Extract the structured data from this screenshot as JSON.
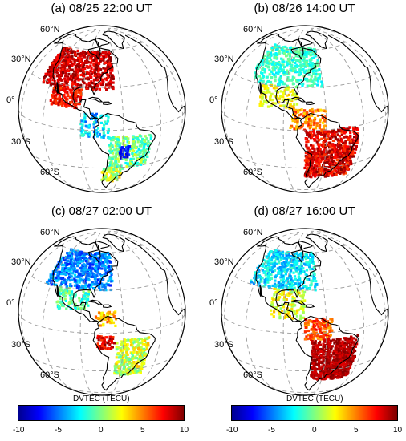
{
  "panels": [
    {
      "title": "(a) 08/25 22:00 UT",
      "lat_labels": [
        "60°N",
        "30°N",
        "0°",
        "30°S",
        "60°S"
      ],
      "scene": "a"
    },
    {
      "title": "(b) 08/26 14:00 UT",
      "lat_labels": [
        "60°N",
        "30°N",
        "0°",
        "30°S",
        "60°S"
      ],
      "scene": "b"
    },
    {
      "title": "(c) 08/27 02:00 UT",
      "lat_labels": [
        "60°N",
        "30°N",
        "0°",
        "30°S",
        "60°S"
      ],
      "scene": "c"
    },
    {
      "title": "(d) 08/27 16:00 UT",
      "lat_labels": [
        "60°N",
        "30°N",
        "0°",
        "30°S",
        "60°S"
      ],
      "scene": "d"
    }
  ],
  "colorbars": [
    {
      "title": "DVTEC (TECU)",
      "ticks": [
        "-10",
        "-5",
        "0",
        "5",
        "10"
      ],
      "colormap": "jet"
    },
    {
      "title": "DVTEC (TECU)",
      "ticks": [
        "-10",
        "-5",
        "0",
        "5",
        "10"
      ],
      "colormap": "jet-dark"
    }
  ],
  "colors": {
    "coastline": "#000000",
    "grid": "#9a9a9a",
    "globe_outline": "#000000"
  }
}
